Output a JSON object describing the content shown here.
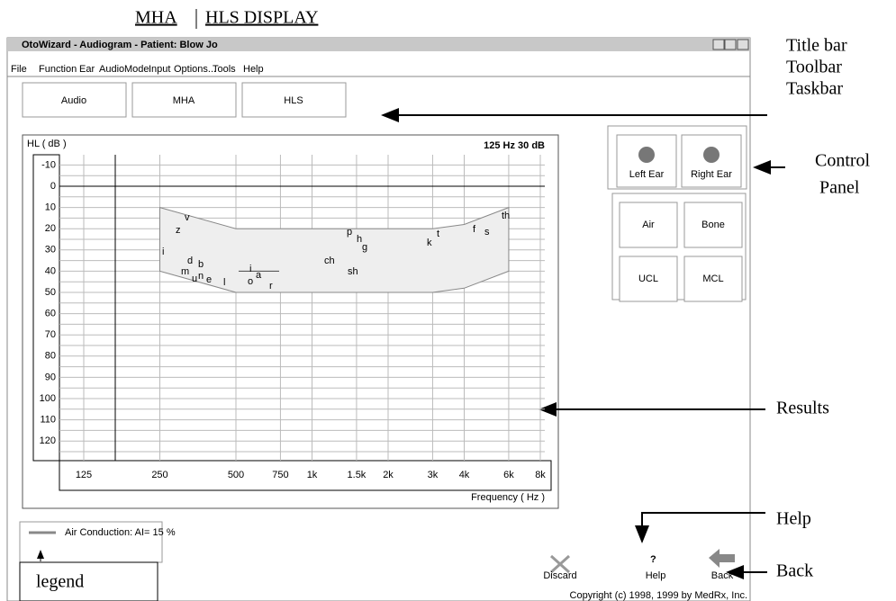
{
  "header": {
    "left": "MHA",
    "right": "HLS DISPLAY"
  },
  "window": {
    "title": "OtoWizard - Audiogram - Patient: Blow Jo",
    "menu": [
      "File",
      "Function",
      "Ear",
      "Audio",
      "Mode",
      "Input",
      "Options...",
      "Tools",
      "Help"
    ],
    "tabs": [
      "Audio",
      "MHA",
      "HLS"
    ],
    "audiogram": {
      "y_axis_label": "HL ( dB )",
      "readout": "125 Hz 30 dB",
      "x_axis_label": "Frequency ( Hz )",
      "y_ticks": [
        "-10",
        "0",
        "10",
        "20",
        "30",
        "40",
        "50",
        "60",
        "70",
        "80",
        "90",
        "100",
        "110",
        "120"
      ],
      "x_ticks": [
        "125",
        "250",
        "500",
        "750",
        "1k",
        "1.5k",
        "2k",
        "3k",
        "4k",
        "6k",
        "8k"
      ],
      "phonemes": [
        "v",
        "z",
        "i",
        "d",
        "b",
        "m",
        "u",
        "n",
        "e",
        "l",
        "i",
        "a",
        "o",
        "r",
        "ch",
        "sh",
        "p",
        "h",
        "g",
        "k",
        "t",
        "f",
        "s",
        "th"
      ]
    },
    "control_panel": {
      "ear_buttons": [
        "Left Ear",
        "Right Ear"
      ],
      "test_buttons": [
        "Air",
        "Bone",
        "UCL",
        "MCL"
      ]
    },
    "legend": {
      "entry": "Air Conduction: AI= 15 %"
    },
    "actions": [
      "Discard",
      "Help",
      "Back"
    ],
    "copyright": "Copyright (c) 1998, 1999 by MedRx, Inc."
  },
  "annotations": {
    "title_bar": "Title bar",
    "toolbar": "Toolbar",
    "taskbar": "Taskbar",
    "control": "Control",
    "panel": "Panel",
    "results": "Results",
    "help": "Help",
    "back": "Back",
    "legend": "legend"
  }
}
